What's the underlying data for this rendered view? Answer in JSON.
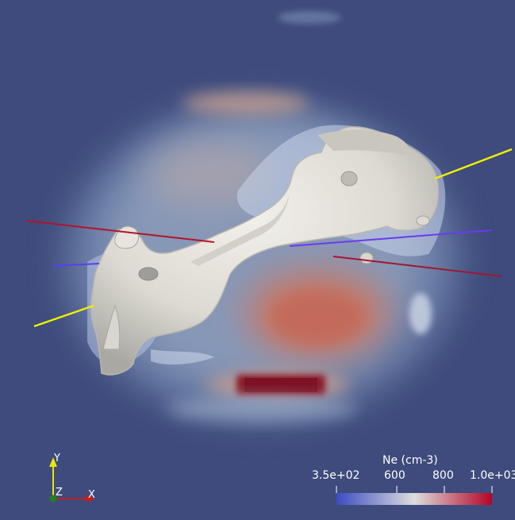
{
  "colormap": {
    "title": "Ne (cm-3)",
    "ticks": [
      "3.5e+02",
      "600",
      "800",
      "1.0e+03"
    ],
    "colors": [
      "#3b4cc0",
      "#dddddd",
      "#b40426"
    ]
  },
  "axes_triad": {
    "y": "Y",
    "z": "Z",
    "x": "X",
    "y_color": "#e8e800",
    "x_color": "#c02020",
    "z_color": "#208020"
  },
  "scene": {
    "background": "#3e4b7c",
    "isosurface_color": "#e8e6df"
  }
}
